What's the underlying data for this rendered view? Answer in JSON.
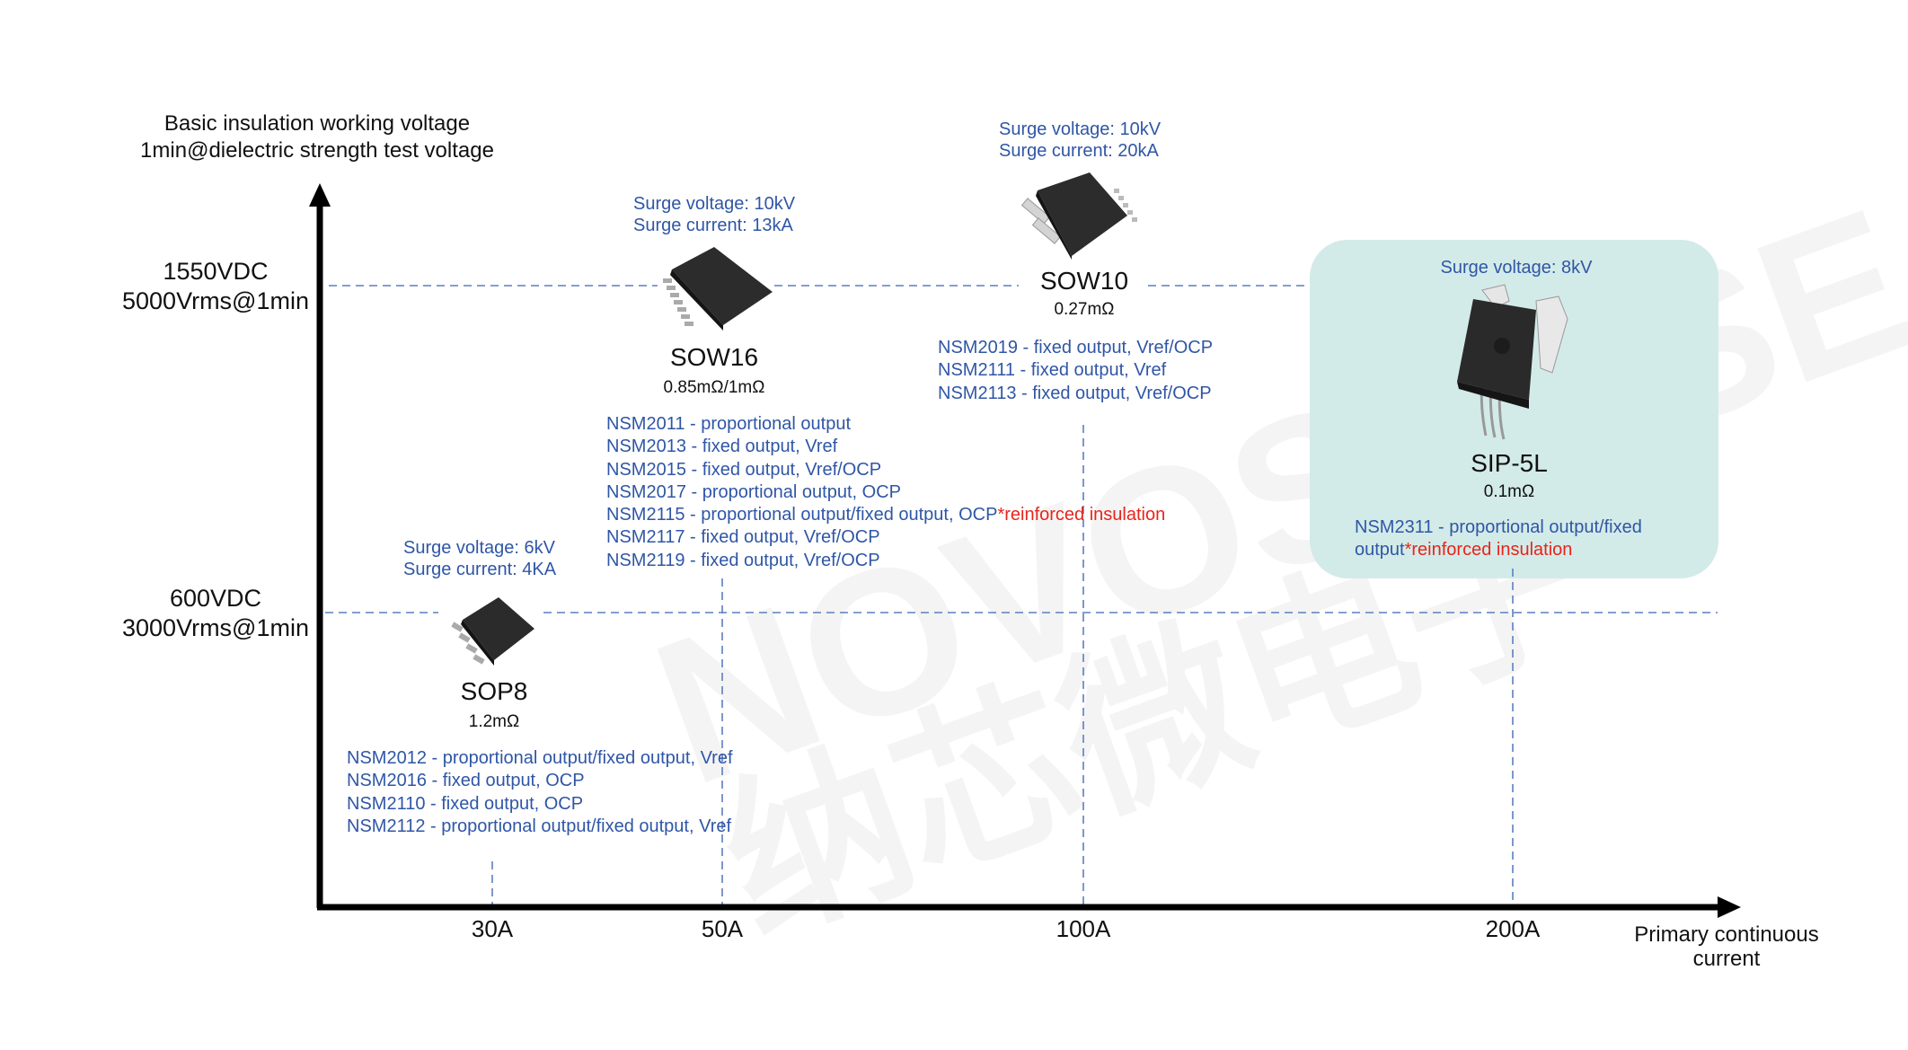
{
  "watermark": {
    "brand": "NOVOSENSE",
    "chinese": "纳芯微电子"
  },
  "y_axis": {
    "title_line1": "Basic insulation working voltage",
    "title_line2": "1min@dielectric strength test voltage",
    "levels": [
      {
        "dc": "1550VDC",
        "rms": "5000Vrms@1min"
      },
      {
        "dc": "600VDC",
        "rms": "3000Vrms@1min"
      }
    ]
  },
  "x_axis": {
    "title_line1": "Primary continuous",
    "title_line2": "current",
    "ticks": [
      "30A",
      "50A",
      "100A",
      "200A"
    ]
  },
  "packages": {
    "sop8": {
      "name": "SOP8",
      "resistance": "1.2mΩ",
      "surge_voltage": "Surge voltage: 6kV",
      "surge_current": "Surge current: 4KA",
      "parts": [
        "NSM2012 - proportional output/fixed output, Vref",
        "NSM2016 - fixed output, OCP",
        "NSM2110 - fixed output, OCP",
        "NSM2112 - proportional output/fixed output, Vref"
      ]
    },
    "sow16": {
      "name": "SOW16",
      "resistance": "0.85mΩ/1mΩ",
      "surge_voltage": "Surge voltage: 10kV",
      "surge_current": "Surge current: 13kA",
      "parts": [
        "NSM2011 - proportional output",
        "NSM2013 - fixed output, Vref",
        "NSM2015 - fixed output, Vref/OCP",
        "NSM2017 - proportional output, OCP",
        "NSM2115 - proportional output/fixed output, OCP",
        "NSM2117 - fixed output, Vref/OCP",
        "NSM2119 - fixed output, Vref/OCP"
      ],
      "note": "*reinforced insulation"
    },
    "sow10": {
      "name": "SOW10",
      "resistance": "0.27mΩ",
      "surge_voltage": "Surge voltage: 10kV",
      "surge_current": "Surge current: 20kA",
      "parts": [
        "NSM2019 - fixed output, Vref/OCP",
        "NSM2111 - fixed output, Vref",
        "NSM2113 - fixed output, Vref/OCP"
      ]
    },
    "sip5l": {
      "name": "SIP-5L",
      "resistance": "0.1mΩ",
      "surge_voltage": "Surge voltage: 8kV",
      "part_line1": "NSM2311 - proportional output/fixed",
      "part_line2": "output",
      "note": "*reinforced insulation"
    }
  },
  "colors": {
    "text_blue": "#2f56a6",
    "note_red": "#e8241c",
    "highlight_box": "#d3ebe8",
    "dashed": "#5b7fc0",
    "axis": "#000000"
  }
}
